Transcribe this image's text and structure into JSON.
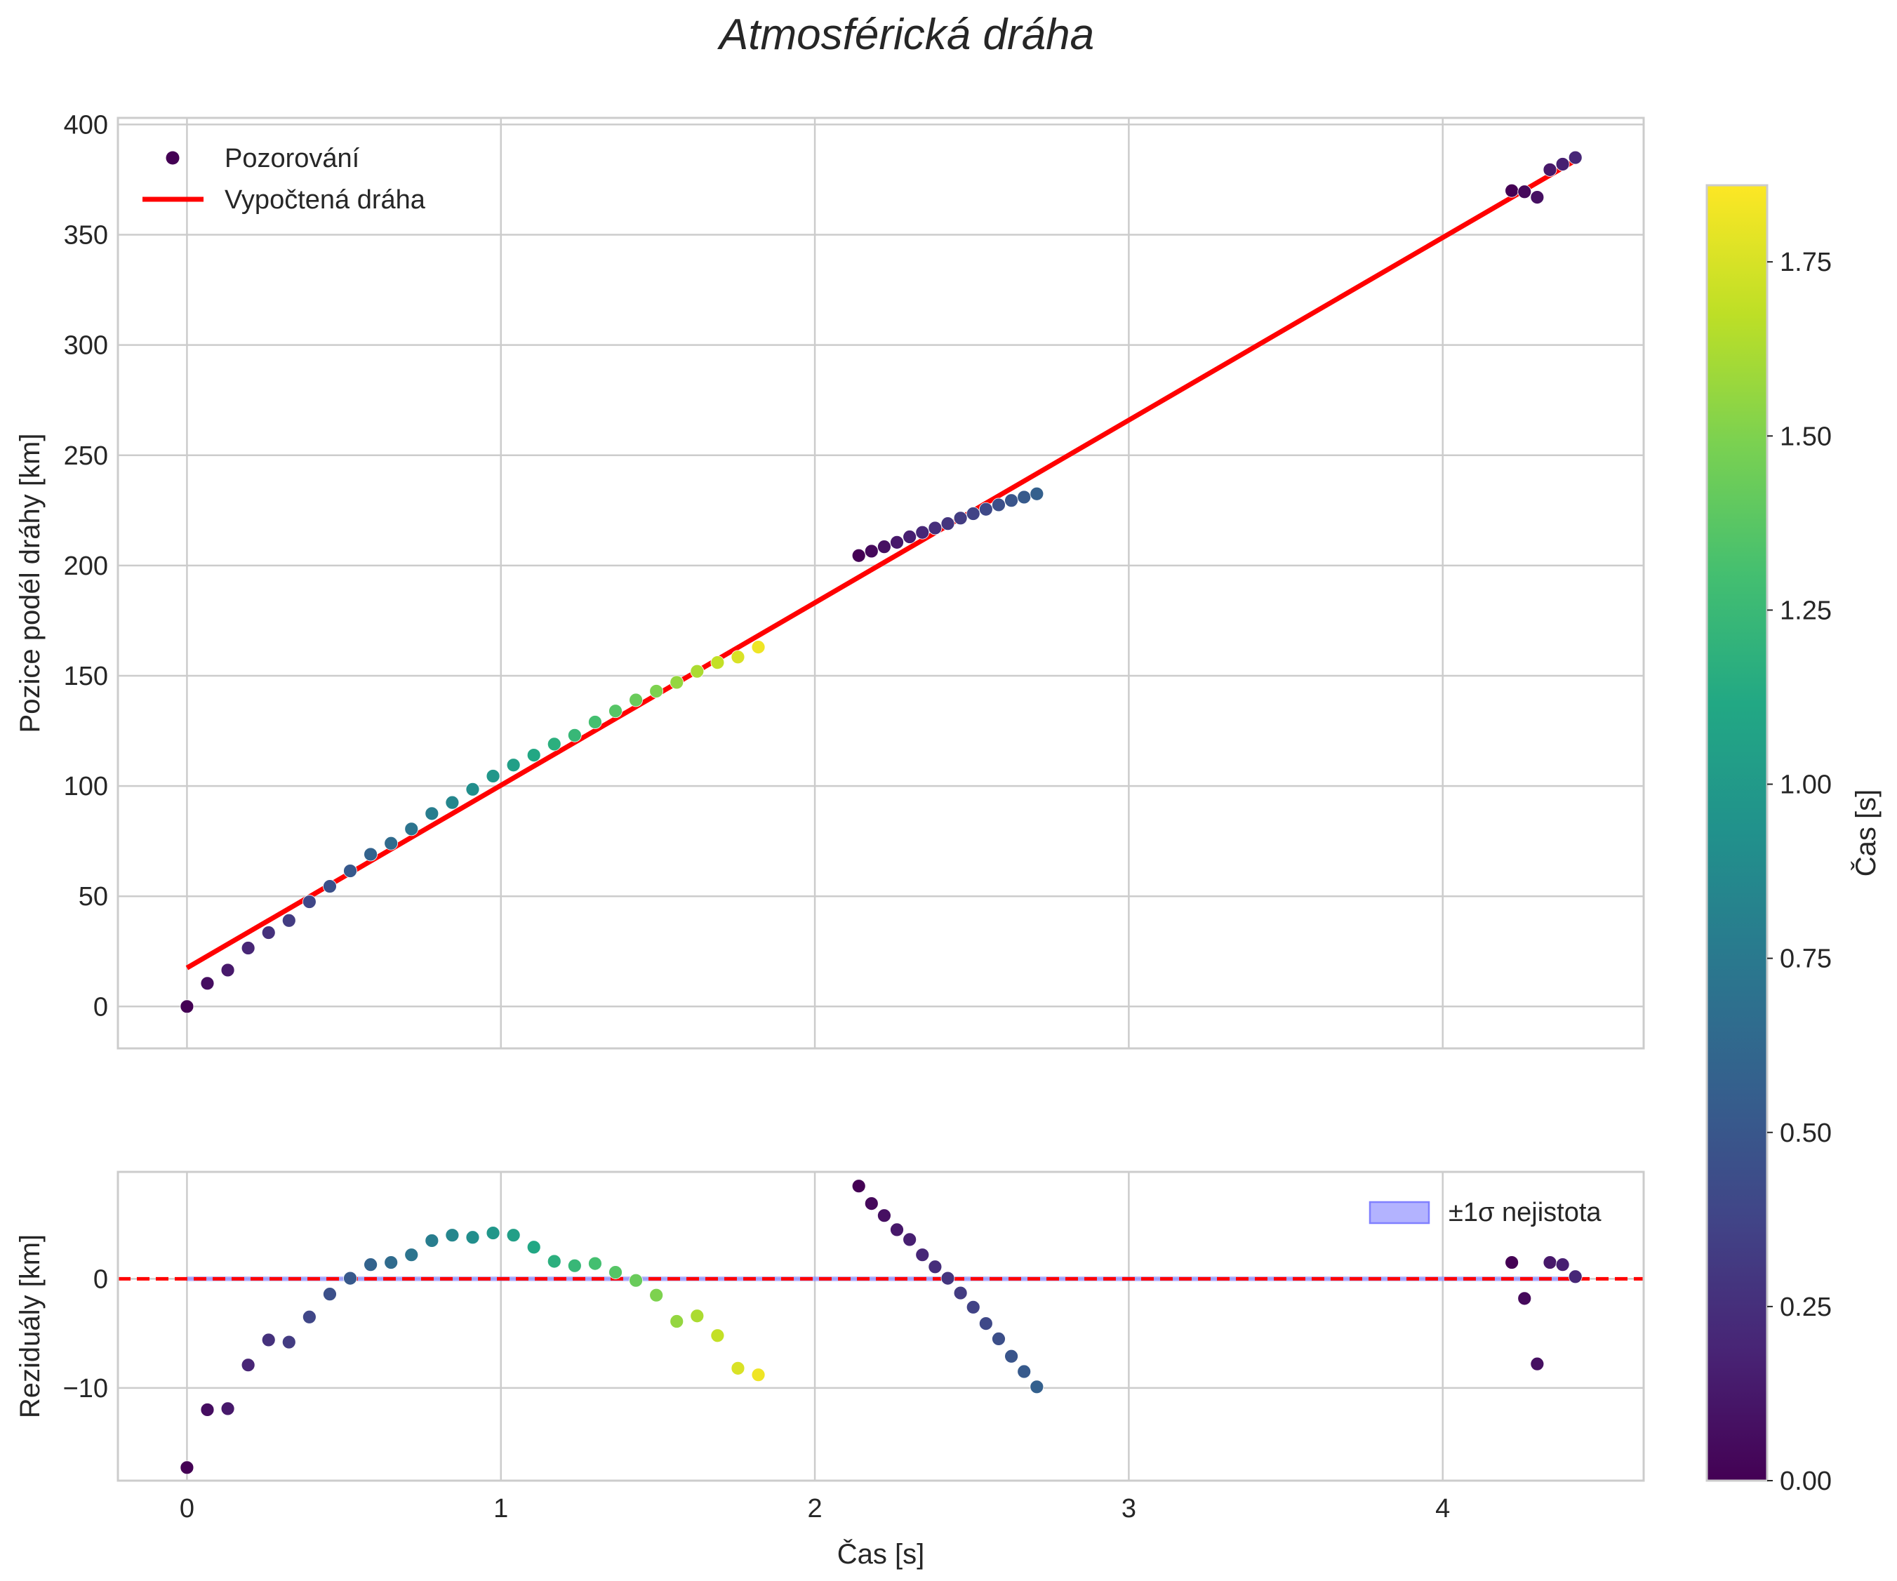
{
  "chart_data": [
    {
      "type": "scatter",
      "title": "Atmosférická dráha",
      "xlabel": "",
      "ylabel": "Pozice podél dráhy [km]",
      "xlim": [
        -0.22,
        4.64
      ],
      "ylim": [
        -19,
        403
      ],
      "xticks": [
        0,
        1,
        2,
        3,
        4
      ],
      "yticks": [
        0,
        50,
        100,
        150,
        200,
        250,
        300,
        350,
        400
      ],
      "xtick_labels": [
        "",
        "",
        "",
        "",
        ""
      ],
      "ytick_labels": [
        "0",
        "50",
        "100",
        "150",
        "200",
        "250",
        "300",
        "350",
        "400"
      ],
      "grid": true,
      "legend_position": "top-left",
      "legend": [
        "Pozorování",
        "Vypočtená dráha"
      ],
      "series": [
        {
          "name": "Pozorování",
          "kind": "scatter",
          "colormap": "viridis",
          "groups": [
            {
              "t_start": 0.0,
              "t_step": 0.065,
              "y": [
                0,
                10.5,
                16.5,
                26.5,
                33.5,
                39,
                47.5,
                54.5,
                61.5,
                69,
                74,
                80.5,
                87.5,
                92.5,
                98.5,
                104.5,
                109.5,
                114,
                119,
                123,
                129,
                134,
                139,
                143,
                147,
                152,
                156,
                158.5,
                163
              ]
            },
            {
              "t_start": 2.14,
              "t_step": 0.0405,
              "y": [
                204.5,
                206.5,
                208.5,
                210.5,
                213,
                215,
                217,
                219,
                221.5,
                223.5,
                225.5,
                227.5,
                229.5,
                231,
                232.5
              ]
            },
            {
              "t_start": 4.22,
              "t_step": 0.0405,
              "y": [
                370,
                369.5,
                367,
                379.5,
                382,
                385
              ]
            }
          ]
        },
        {
          "name": "Vypočtená dráha",
          "kind": "line",
          "color": "#ff0000",
          "x": [
            0,
            4.42
          ],
          "y": [
            17.5,
            383.5
          ]
        }
      ]
    },
    {
      "type": "scatter",
      "title": "",
      "xlabel": "Čas [s]",
      "ylabel": "Reziduály [km]",
      "xlim": [
        -0.22,
        4.64
      ],
      "ylim": [
        -18.5,
        9.8
      ],
      "xticks": [
        0,
        1,
        2,
        3,
        4
      ],
      "yticks": [
        -10,
        0
      ],
      "xtick_labels": [
        "0",
        "1",
        "2",
        "3",
        "4"
      ],
      "ytick_labels": [
        "−10",
        "0"
      ],
      "grid": true,
      "legend_position": "top-right",
      "legend": [
        "±1σ nejistota"
      ],
      "series": [
        {
          "name": "Reziduály",
          "kind": "scatter",
          "colormap": "viridis",
          "groups": [
            {
              "t_start": 0.0,
              "t_step": 0.065,
              "y": [
                -17.3,
                -12,
                -11.9,
                -7.9,
                -5.6,
                -5.8,
                -3.5,
                -1.4,
                0.05,
                1.3,
                1.5,
                2.2,
                3.5,
                4,
                3.8,
                4.2,
                4,
                2.9,
                1.6,
                1.2,
                1.4,
                0.6,
                -0.15,
                -1.5,
                -3.9,
                -3.4,
                -5.2,
                -8.2,
                -8.8
              ]
            },
            {
              "t_start": 2.14,
              "t_step": 0.0405,
              "y": [
                8.5,
                6.9,
                5.8,
                4.5,
                3.6,
                2.2,
                1.1,
                0.05,
                -1.3,
                -2.6,
                -4.1,
                -5.5,
                -7.1,
                -8.5,
                -9.9
              ]
            },
            {
              "t_start": 4.22,
              "t_step": 0.0405,
              "y": [
                1.5,
                -1.8,
                -7.8,
                1.5,
                1.3,
                0.2
              ]
            }
          ]
        },
        {
          "name": "±1σ nejistota",
          "kind": "band",
          "fill_color": "#b3b3ff",
          "edge_color": "#8080ff",
          "x": [
            0,
            4.42
          ],
          "low": -0.15,
          "high": 0.15
        },
        {
          "name": "zero",
          "kind": "hline",
          "color": "#ff0000",
          "y": 0
        }
      ]
    }
  ],
  "colorbar": {
    "label": "Čas [s]",
    "colormap": "viridis",
    "range": [
      0,
      1.86
    ],
    "ticks": [
      0,
      0.25,
      0.5,
      0.75,
      1.0,
      1.25,
      1.5,
      1.75
    ],
    "tick_labels": [
      "0.00",
      "0.25",
      "0.50",
      "0.75",
      "1.00",
      "1.25",
      "1.50",
      "1.75"
    ]
  }
}
